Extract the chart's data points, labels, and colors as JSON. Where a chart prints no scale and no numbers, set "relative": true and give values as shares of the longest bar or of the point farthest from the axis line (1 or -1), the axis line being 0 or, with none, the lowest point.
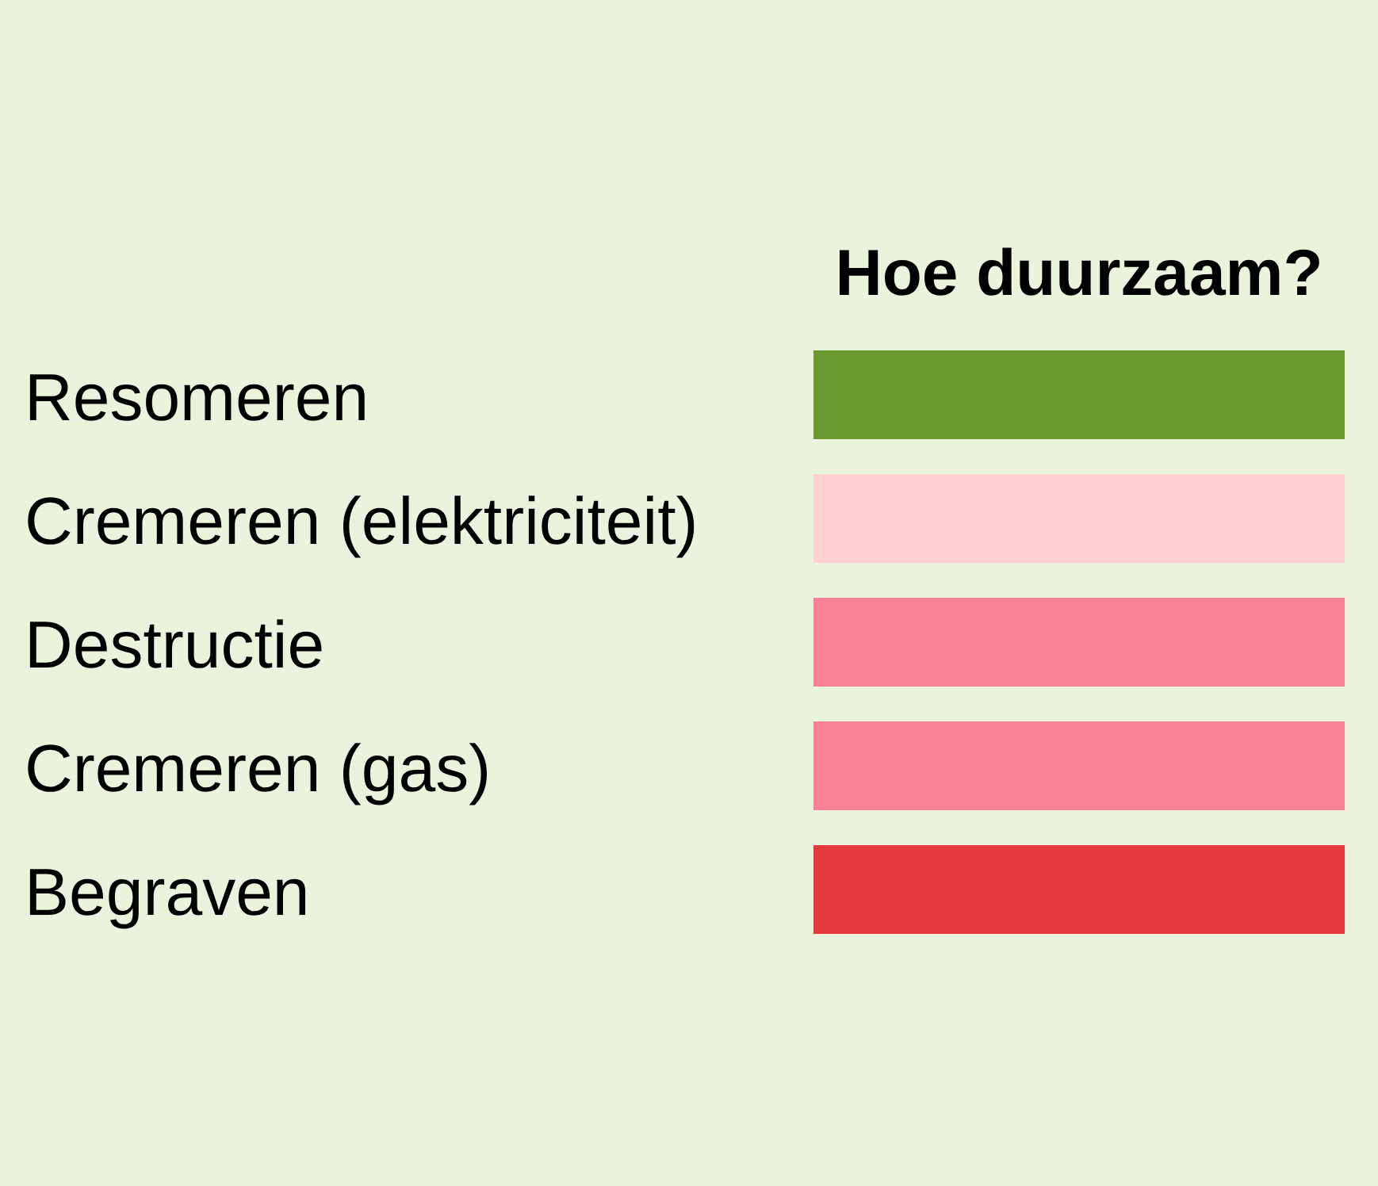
{
  "chart_data": {
    "type": "bar",
    "orientation": "horizontal",
    "relative": true,
    "title": "Hoe duurzaam?",
    "categories": [
      "Resomeren",
      "Cremeren (elektriciteit)",
      "Destructie",
      "Cremeren (gas)",
      "Begraven"
    ],
    "values": [
      1,
      1,
      1,
      1,
      1
    ],
    "colors": [
      "#6a9a2f",
      "#fecfd3",
      "#fa8296",
      "#fa8296",
      "#e6393b"
    ]
  }
}
